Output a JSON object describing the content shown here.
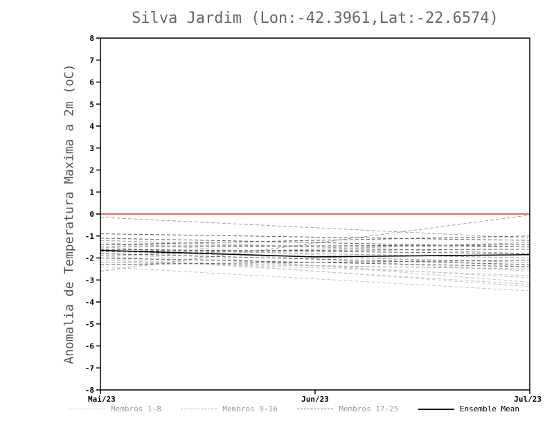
{
  "title": "Silva Jardim (Lon:-42.3961,Lat:-22.6574)",
  "ylabel": "Anomalia de Temperatura Maxima a 2m (oC)",
  "legend": [
    {
      "label": "Membros 1-8",
      "color": "#c6c6c6",
      "text_color": "#9a9a9a",
      "style": "dashed"
    },
    {
      "label": "Membros 9-16",
      "color": "#9e9e9e",
      "text_color": "#9a9a9a",
      "style": "dashed"
    },
    {
      "label": "Membros 17-25",
      "color": "#5f5f5f",
      "text_color": "#9a9a9a",
      "style": "dashed"
    },
    {
      "label": "Ensemble Mean",
      "color": "#000000",
      "text_color": "#000000",
      "style": "solid"
    }
  ],
  "chart_data": {
    "type": "line",
    "title": "Silva Jardim (Lon:-42.3961,Lat:-22.6574)",
    "xlabel": "",
    "ylabel": "Anomalia de Temperatura Maxima a 2m (oC)",
    "x_tick_labels": [
      "Mai/23",
      "Jun/23",
      "Jul/23"
    ],
    "ylim": [
      -8,
      8
    ],
    "ytick_step": 1,
    "grid": false,
    "zero_line_color": "#e0392e",
    "axis_color": "#000000",
    "groups": [
      {
        "name": "Membros 1-8",
        "color": "#c6c6c6",
        "members": [
          [
            -1.6,
            -3.1
          ],
          [
            -1.9,
            -3.3
          ],
          [
            -2.1,
            -2.8
          ],
          [
            -1.5,
            -2.6
          ],
          [
            -2.4,
            -3.5
          ],
          [
            -1.8,
            -2.9
          ],
          [
            -1.3,
            -2.4
          ],
          [
            -2.0,
            -3.2
          ]
        ]
      },
      {
        "name": "Membros 9-16",
        "color": "#9e9e9e",
        "members": [
          [
            -0.15,
            -1.1
          ],
          [
            -1.4,
            -1.5
          ],
          [
            -1.7,
            -2.2
          ],
          [
            -2.6,
            -0.05
          ],
          [
            -1.2,
            -1.8
          ],
          [
            -1.9,
            -1.3
          ],
          [
            -2.2,
            -2.5
          ],
          [
            -1.6,
            -2.0
          ]
        ]
      },
      {
        "name": "Membros 17-25",
        "color": "#5f5f5f",
        "members": [
          [
            -0.9,
            -1.2
          ],
          [
            -1.5,
            -1.4
          ],
          [
            -1.8,
            -2.3
          ],
          [
            -2.3,
            -2.1
          ],
          [
            -1.4,
            -1.0
          ],
          [
            -1.7,
            -1.6
          ],
          [
            -2.0,
            -2.4
          ],
          [
            -1.1,
            -1.5
          ],
          [
            -1.6,
            -1.8
          ]
        ]
      }
    ],
    "ensemble_mean": {
      "name": "Ensemble Mean",
      "color": "#000000",
      "x": [
        0,
        0.5,
        1
      ],
      "values": [
        -1.65,
        -1.95,
        -1.85
      ]
    }
  }
}
